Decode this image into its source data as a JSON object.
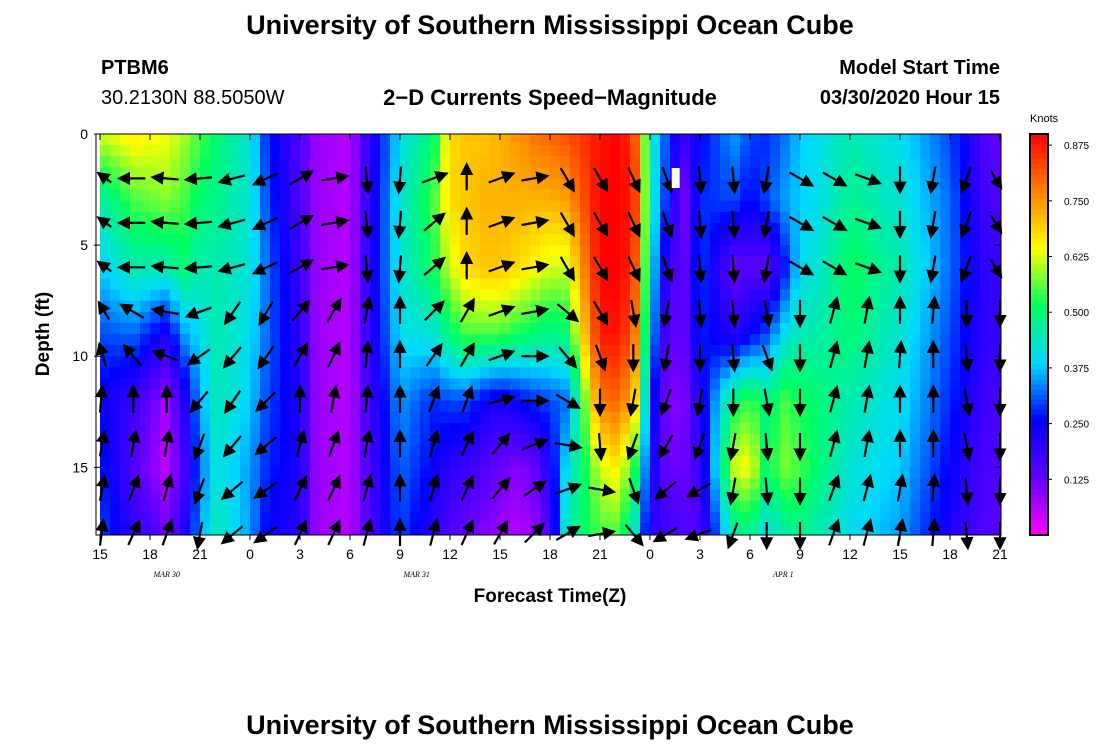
{
  "header": {
    "title": "University of Southern Mississippi Ocean Cube",
    "station": "PTBM6",
    "coords": "30.2130N 88.5050W",
    "plot_title": "2−D Currents Speed−Magnitude",
    "model_label": "Model Start Time",
    "model_time": "03/30/2020 Hour 15"
  },
  "footer": {
    "title": "University of Southern Mississippi Ocean Cube"
  },
  "chart_data": {
    "type": "heatmap",
    "title": "2−D Currents Speed−Magnitude",
    "xlabel": "Forecast Time(Z)",
    "ylabel": "Depth (ft)",
    "x_tick_labels": [
      "15",
      "18",
      "21",
      "0",
      "3",
      "6",
      "9",
      "12",
      "15",
      "18",
      "21",
      "0",
      "3",
      "6",
      "9",
      "12",
      "15",
      "18",
      "21"
    ],
    "date_labels": [
      "MAR  30",
      "MAR  31",
      "APR  1"
    ],
    "date_label_hours": [
      4,
      19,
      41
    ],
    "y_ticks": [
      0,
      5,
      10,
      15
    ],
    "ylim": [
      0,
      18
    ],
    "xlim_hours": [
      0,
      54
    ],
    "x_start": "03/30/2020 15Z",
    "colorbar": {
      "unit": "Knots",
      "ticks": [
        0.125,
        0.25,
        0.375,
        0.5,
        0.625,
        0.75,
        0.875
      ],
      "range": [
        0,
        0.9
      ],
      "colors": [
        "#ff00ff",
        "#6000ff",
        "#0000ff",
        "#00d8ff",
        "#00ff60",
        "#ffff00",
        "#ff8000",
        "#ff0000"
      ]
    },
    "speed_profile": {
      "hours": [
        0,
        2,
        4,
        5,
        6,
        7,
        9,
        10,
        12,
        13,
        15,
        18,
        20,
        21,
        22,
        23,
        24,
        25,
        26,
        27,
        28,
        30,
        31,
        32,
        33,
        34,
        35,
        36,
        38,
        39,
        40,
        41,
        42,
        43,
        45,
        48,
        51,
        53,
        54
      ],
      "depth_ft": [
        0,
        3,
        6,
        9,
        12,
        15,
        18
      ],
      "knots": [
        [
          0.62,
          0.45,
          0.38,
          0.3,
          0.25,
          0.28,
          0.3
        ],
        [
          0.66,
          0.55,
          0.45,
          0.32,
          0.18,
          0.15,
          0.2
        ],
        [
          0.64,
          0.58,
          0.45,
          0.22,
          0.07,
          0.05,
          0.12
        ],
        [
          0.6,
          0.55,
          0.5,
          0.35,
          0.2,
          0.15,
          0.2
        ],
        [
          0.55,
          0.5,
          0.45,
          0.4,
          0.35,
          0.32,
          0.35
        ],
        [
          0.5,
          0.48,
          0.45,
          0.45,
          0.45,
          0.42,
          0.45
        ],
        [
          0.42,
          0.42,
          0.42,
          0.4,
          0.38,
          0.35,
          0.35
        ],
        [
          0.28,
          0.3,
          0.32,
          0.32,
          0.3,
          0.28,
          0.25
        ],
        [
          0.15,
          0.15,
          0.18,
          0.2,
          0.22,
          0.22,
          0.2
        ],
        [
          0.08,
          0.08,
          0.08,
          0.08,
          0.08,
          0.08,
          0.08
        ],
        [
          0.06,
          0.06,
          0.06,
          0.06,
          0.06,
          0.06,
          0.06
        ],
        [
          0.4,
          0.42,
          0.42,
          0.4,
          0.35,
          0.32,
          0.3
        ],
        [
          0.5,
          0.55,
          0.52,
          0.42,
          0.28,
          0.25,
          0.2
        ],
        [
          0.68,
          0.68,
          0.62,
          0.5,
          0.3,
          0.2,
          0.15
        ],
        [
          0.7,
          0.7,
          0.68,
          0.55,
          0.3,
          0.18,
          0.12
        ],
        [
          0.7,
          0.72,
          0.7,
          0.55,
          0.25,
          0.15,
          0.1
        ],
        [
          0.72,
          0.72,
          0.7,
          0.55,
          0.22,
          0.12,
          0.08
        ],
        [
          0.75,
          0.72,
          0.68,
          0.52,
          0.25,
          0.1,
          0.06
        ],
        [
          0.78,
          0.72,
          0.65,
          0.5,
          0.28,
          0.12,
          0.08
        ],
        [
          0.8,
          0.72,
          0.62,
          0.48,
          0.3,
          0.22,
          0.15
        ],
        [
          0.82,
          0.74,
          0.62,
          0.5,
          0.32,
          0.4,
          0.45
        ],
        [
          0.88,
          0.9,
          0.9,
          0.88,
          0.78,
          0.62,
          0.55
        ],
        [
          0.9,
          0.9,
          0.9,
          0.88,
          0.8,
          0.66,
          0.55
        ],
        [
          0.85,
          0.88,
          0.86,
          0.82,
          0.72,
          0.55,
          0.45
        ],
        [
          0.45,
          0.45,
          0.42,
          0.38,
          0.3,
          0.25,
          0.2
        ],
        [
          0.3,
          0.28,
          0.2,
          0.15,
          0.1,
          0.12,
          0.18
        ],
        [
          0.18,
          0.1,
          0.12,
          0.12,
          0.1,
          0.12,
          0.15
        ],
        [
          0.25,
          0.28,
          0.3,
          0.28,
          0.22,
          0.18,
          0.15
        ],
        [
          0.35,
          0.3,
          0.12,
          0.2,
          0.5,
          0.62,
          0.45
        ],
        [
          0.3,
          0.25,
          0.15,
          0.25,
          0.55,
          0.65,
          0.48
        ],
        [
          0.28,
          0.3,
          0.12,
          0.3,
          0.48,
          0.5,
          0.4
        ],
        [
          0.32,
          0.35,
          0.25,
          0.4,
          0.55,
          0.58,
          0.45
        ],
        [
          0.38,
          0.38,
          0.4,
          0.45,
          0.52,
          0.55,
          0.48
        ],
        [
          0.4,
          0.4,
          0.42,
          0.45,
          0.5,
          0.5,
          0.45
        ],
        [
          0.45,
          0.48,
          0.52,
          0.5,
          0.45,
          0.42,
          0.4
        ],
        [
          0.4,
          0.42,
          0.45,
          0.42,
          0.4,
          0.38,
          0.35
        ],
        [
          0.3,
          0.32,
          0.32,
          0.3,
          0.28,
          0.25,
          0.22
        ],
        [
          0.15,
          0.18,
          0.2,
          0.2,
          0.18,
          0.16,
          0.15
        ],
        [
          0.12,
          0.15,
          0.18,
          0.18,
          0.16,
          0.15,
          0.14
        ]
      ]
    },
    "vectors": {
      "hours": [
        0,
        2,
        4,
        6,
        8,
        10,
        12,
        14,
        16,
        18,
        20,
        22,
        24,
        26,
        28,
        30,
        32,
        34,
        36,
        38,
        40,
        42,
        44,
        46,
        48,
        50,
        52,
        54
      ],
      "depth_ft": [
        2,
        4,
        6,
        8,
        10,
        12,
        14,
        16,
        18
      ],
      "direction_deg": [
        [
          290,
          270,
          275,
          265,
          255,
          245,
          60,
          80,
          175,
          185,
          70,
          0,
          70,
          80,
          150,
          150,
          155,
          160,
          175,
          175,
          190,
          120,
          120,
          110,
          180,
          190,
          200,
          130
        ],
        [
          290,
          270,
          275,
          265,
          255,
          245,
          60,
          80,
          175,
          185,
          50,
          0,
          70,
          80,
          150,
          150,
          155,
          160,
          175,
          175,
          190,
          120,
          120,
          110,
          180,
          190,
          200,
          130
        ],
        [
          290,
          270,
          275,
          265,
          255,
          245,
          60,
          80,
          175,
          185,
          50,
          0,
          70,
          80,
          150,
          150,
          155,
          160,
          175,
          175,
          190,
          120,
          120,
          110,
          180,
          190,
          200,
          130
        ],
        [
          310,
          300,
          280,
          250,
          215,
          210,
          40,
          30,
          10,
          0,
          45,
          30,
          70,
          80,
          130,
          150,
          170,
          190,
          175,
          175,
          170,
          180,
          15,
          10,
          0,
          5,
          180,
          180
        ],
        [
          330,
          320,
          290,
          235,
          220,
          215,
          30,
          25,
          5,
          0,
          35,
          30,
          70,
          90,
          140,
          160,
          180,
          190,
          180,
          175,
          160,
          180,
          15,
          10,
          5,
          0,
          175,
          180
        ],
        [
          10,
          0,
          0,
          220,
          215,
          225,
          0,
          10,
          5,
          0,
          20,
          20,
          75,
          90,
          120,
          180,
          190,
          200,
          190,
          180,
          170,
          180,
          15,
          10,
          0,
          0,
          170,
          180
        ],
        [
          20,
          10,
          10,
          200,
          220,
          230,
          15,
          20,
          10,
          0,
          15,
          25,
          40,
          70,
          100,
          175,
          200,
          210,
          200,
          190,
          175,
          180,
          15,
          10,
          0,
          0,
          170,
          180
        ],
        [
          20,
          20,
          15,
          200,
          230,
          235,
          25,
          25,
          15,
          0,
          15,
          25,
          40,
          55,
          70,
          100,
          160,
          230,
          240,
          190,
          175,
          180,
          20,
          15,
          10,
          5,
          175,
          180
        ],
        [
          15,
          25,
          20,
          190,
          230,
          235,
          25,
          25,
          15,
          0,
          15,
          25,
          30,
          45,
          60,
          80,
          140,
          240,
          250,
          200,
          180,
          180,
          20,
          15,
          10,
          5,
          175,
          180
        ]
      ]
    }
  }
}
